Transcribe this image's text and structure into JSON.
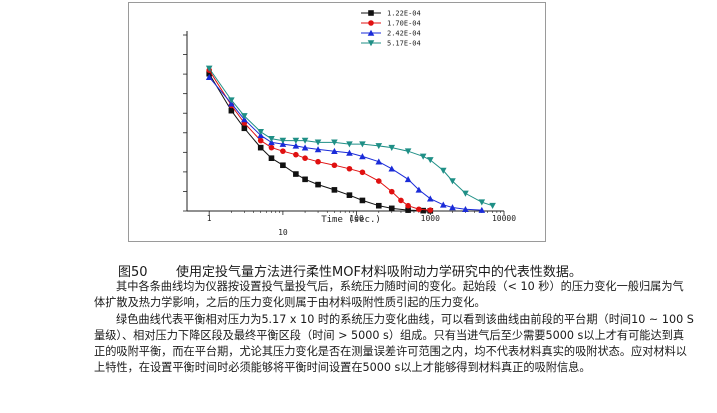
{
  "caption": {
    "number": "图50",
    "text": "使用定投气量方法进行柔性MOF材料吸附动力学研究中的代表性数据。"
  },
  "paragraphs": [
    "其中各条曲线均为仪器按设置投气量投气后，系统压力随时间的变化。起始段（< 10 秒）的压力变化一般归属为气体扩散及热力学影响，之后的压力变化则属于由材料吸附性质引起的压力变化。",
    "绿色曲线代表平衡相对压力为5.17 x 10 时的系统压力变化曲线，可以看到该曲线由前段的平台期（时间10 ~ 100 S量级）、相对压力下降区段及最终平衡区段（时间 > 5000 s）组成。只有当进气后至少需要5000 s以上才有可能达到真正的吸附平衡，而在平台期，尤论其压力变化是否在测量误差许可范围之内，均不代表材料真实的吸附状态。应对材料以上特性，在设置平衡时间时必须能够将平衡时间设置在5000 s以上才能够得到材料真正的吸附信息。"
  ],
  "chart_data": {
    "type": "line",
    "x_axis": {
      "scale": "log",
      "range": [
        0.5,
        10000
      ],
      "tick_labels": [
        "1",
        "10",
        "100",
        "1000",
        "10000"
      ],
      "label": "Time (sec.)"
    },
    "y_axis": {
      "range": [
        0,
        1
      ],
      "tick_labels": []
    },
    "legend_position": "top-right",
    "series": [
      {
        "name": "1.22E-04",
        "color": "#111111",
        "marker": "square",
        "points": [
          [
            1,
            0.78
          ],
          [
            2,
            0.57
          ],
          [
            3,
            0.47
          ],
          [
            5,
            0.36
          ],
          [
            7,
            0.3
          ],
          [
            10,
            0.26
          ],
          [
            15,
            0.21
          ],
          [
            20,
            0.18
          ],
          [
            30,
            0.15
          ],
          [
            50,
            0.12
          ],
          [
            80,
            0.09
          ],
          [
            120,
            0.06
          ],
          [
            200,
            0.03
          ],
          [
            300,
            0.015
          ],
          [
            500,
            0.005
          ],
          [
            800,
            0.002
          ],
          [
            1000,
            0.001
          ]
        ]
      },
      {
        "name": "1.70E-04",
        "color": "#e01010",
        "marker": "circle",
        "points": [
          [
            1,
            0.8
          ],
          [
            2,
            0.6
          ],
          [
            3,
            0.5
          ],
          [
            5,
            0.4
          ],
          [
            7,
            0.36
          ],
          [
            10,
            0.34
          ],
          [
            15,
            0.32
          ],
          [
            20,
            0.3
          ],
          [
            30,
            0.28
          ],
          [
            50,
            0.26
          ],
          [
            80,
            0.24
          ],
          [
            120,
            0.22
          ],
          [
            200,
            0.17
          ],
          [
            300,
            0.11
          ],
          [
            400,
            0.06
          ],
          [
            500,
            0.03
          ],
          [
            700,
            0.01
          ],
          [
            1000,
            0.005
          ]
        ]
      },
      {
        "name": "2.42E-04",
        "color": "#1a2bd8",
        "marker": "triangle",
        "points": [
          [
            1,
            0.76
          ],
          [
            2,
            0.61
          ],
          [
            3,
            0.52
          ],
          [
            5,
            0.43
          ],
          [
            7,
            0.39
          ],
          [
            10,
            0.38
          ],
          [
            15,
            0.37
          ],
          [
            20,
            0.36
          ],
          [
            30,
            0.35
          ],
          [
            50,
            0.34
          ],
          [
            80,
            0.33
          ],
          [
            120,
            0.31
          ],
          [
            200,
            0.28
          ],
          [
            300,
            0.24
          ],
          [
            500,
            0.18
          ],
          [
            700,
            0.12
          ],
          [
            1000,
            0.07
          ],
          [
            1500,
            0.035
          ],
          [
            2000,
            0.02
          ],
          [
            3000,
            0.01
          ],
          [
            5000,
            0.005
          ]
        ]
      },
      {
        "name": "5.17E-04",
        "color": "#1f8f86",
        "marker": "inverted-triangle",
        "points": [
          [
            1,
            0.81
          ],
          [
            2,
            0.63
          ],
          [
            3,
            0.54
          ],
          [
            5,
            0.45
          ],
          [
            7,
            0.41
          ],
          [
            10,
            0.4
          ],
          [
            15,
            0.4
          ],
          [
            20,
            0.4
          ],
          [
            30,
            0.39
          ],
          [
            50,
            0.39
          ],
          [
            80,
            0.38
          ],
          [
            120,
            0.38
          ],
          [
            200,
            0.37
          ],
          [
            300,
            0.36
          ],
          [
            500,
            0.34
          ],
          [
            800,
            0.31
          ],
          [
            1000,
            0.29
          ],
          [
            1500,
            0.23
          ],
          [
            2000,
            0.17
          ],
          [
            3000,
            0.1
          ],
          [
            5000,
            0.05
          ],
          [
            7000,
            0.03
          ]
        ]
      }
    ]
  }
}
